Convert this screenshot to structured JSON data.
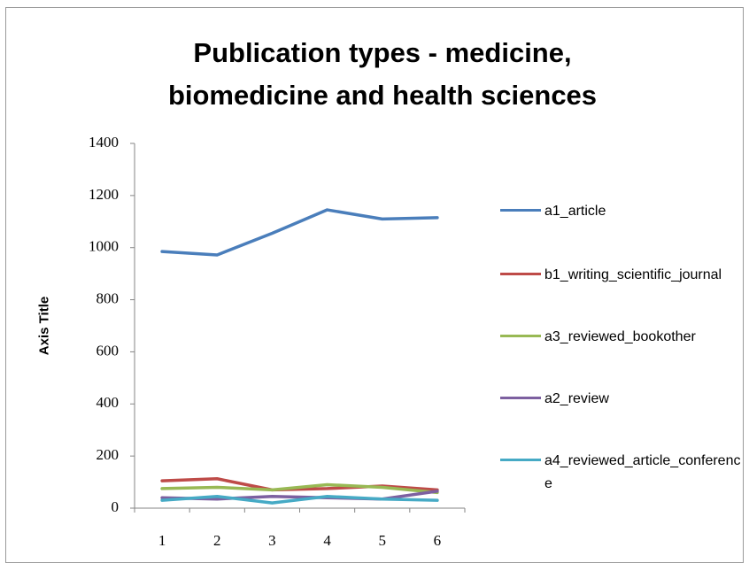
{
  "chart_data": {
    "type": "line",
    "title": "Publication types - medicine, biomedicine and health sciences",
    "y_axis_label": "Axis Title",
    "categories": [
      "1",
      "2",
      "3",
      "4",
      "5",
      "6"
    ],
    "series": [
      {
        "name": "a1_article",
        "color": "#4a7ebb",
        "values": [
          985,
          972,
          1055,
          1145,
          1110,
          1115
        ]
      },
      {
        "name": "b1_writing_scientific_journal",
        "color": "#be4b48",
        "values": [
          105,
          113,
          70,
          75,
          85,
          70
        ]
      },
      {
        "name": "a3_reviewed_bookother",
        "color": "#98b954",
        "values": [
          75,
          80,
          70,
          90,
          80,
          60
        ]
      },
      {
        "name": "a2_review",
        "color": "#7d60a0",
        "values": [
          40,
          35,
          45,
          40,
          35,
          65
        ]
      },
      {
        "name": "a4_reviewed_article_conference",
        "color": "#46aac5",
        "values": [
          30,
          45,
          20,
          45,
          35,
          30
        ]
      }
    ],
    "ylim": [
      0,
      1400
    ],
    "yticks": [
      0,
      200,
      400,
      600,
      800,
      1000,
      1200,
      1400
    ],
    "legend": "right",
    "grid": false
  }
}
